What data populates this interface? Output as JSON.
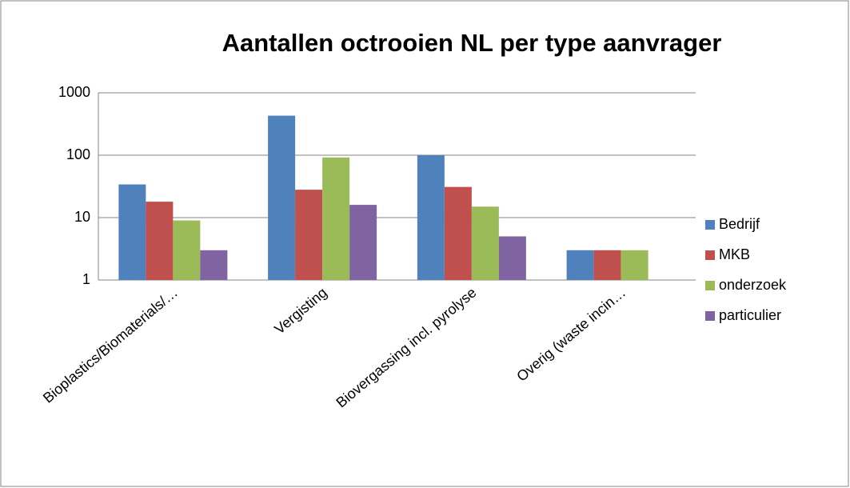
{
  "chart_data": {
    "type": "bar",
    "title": "Aantallen octrooien NL per type aanvrager",
    "categories": [
      "Bioplastics/Biomaterials/…",
      "Vergisting",
      "Biovergassing incl. pyrolyse",
      "Overig (waste incin…"
    ],
    "series": [
      {
        "name": "Bedrijf",
        "color": "#4f81bd",
        "values": [
          34,
          430,
          100,
          3
        ]
      },
      {
        "name": "MKB",
        "color": "#c0504d",
        "values": [
          18,
          28,
          31,
          3
        ]
      },
      {
        "name": "onderzoek",
        "color": "#9bbb59",
        "values": [
          9,
          92,
          15,
          3
        ]
      },
      {
        "name": "particulier",
        "color": "#8064a2",
        "values": [
          3,
          16,
          5,
          null
        ]
      }
    ],
    "ylim": [
      1,
      1000
    ],
    "yticks": [
      1,
      10,
      100,
      1000
    ],
    "log": true,
    "grid": true,
    "legend": "right"
  }
}
